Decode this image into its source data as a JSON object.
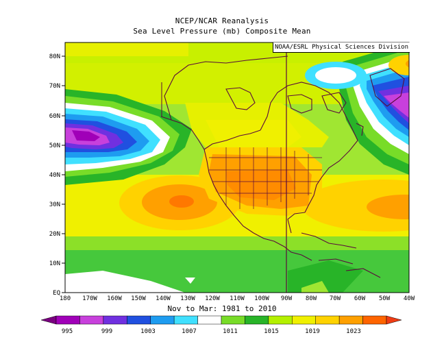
{
  "map": {
    "title": "NCEP/NCAR Reanalysis",
    "subtitle": "Sea Level Pressure (mb) Composite Mean",
    "credit": "NOAA/ESRL Physical Sciences Division",
    "period": "Nov to Mar: 1981 to 2010",
    "lat_labels": [
      "80N",
      "70N",
      "60N",
      "50N",
      "40N",
      "30N",
      "20N",
      "10N",
      "EQ"
    ],
    "lon_labels": [
      "180",
      "170W",
      "160W",
      "150W",
      "140W",
      "130W",
      "120W",
      "110W",
      "100W",
      "90W",
      "80W",
      "70W",
      "60W",
      "50W",
      "40W"
    ],
    "extent": {
      "lon": [
        -180,
        -40
      ],
      "lat": [
        0,
        85
      ]
    }
  },
  "colorbar": {
    "labels": [
      "995",
      "999",
      "1003",
      "1007",
      "1011",
      "1015",
      "1019",
      "1023"
    ],
    "colors": [
      "#7a0080",
      "#a000b8",
      "#c840dc",
      "#7030e0",
      "#2050e0",
      "#1e9cf0",
      "#40e0ff",
      "#ffffff",
      "#78dc28",
      "#28b428",
      "#b4f000",
      "#f0f000",
      "#ffd200",
      "#ffa000",
      "#ff6400",
      "#f03c14"
    ]
  }
}
